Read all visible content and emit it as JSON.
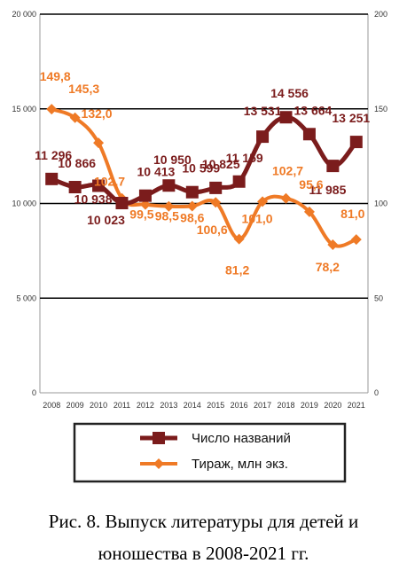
{
  "chart_data": {
    "type": "line",
    "title": "",
    "xlabel": "",
    "ylabel": "",
    "x": [
      "2008",
      "2009",
      "2010",
      "2011",
      "2012",
      "2013",
      "2014",
      "2015",
      "2016",
      "2017",
      "2018",
      "2019",
      "2020",
      "2021"
    ],
    "y_left": {
      "min": 0,
      "max": 20000,
      "ticks": [
        "0",
        "5 000",
        "10 000",
        "15 000",
        "20 000"
      ]
    },
    "y_right": {
      "min": 0,
      "max": 200,
      "ticks": [
        "0",
        "50",
        "100",
        "150",
        "200"
      ]
    },
    "grid": "horizontal",
    "legend_position": "bottom",
    "series": [
      {
        "name": "Число названий",
        "axis": "left",
        "color": "#7b1c1c",
        "marker": "square",
        "values": [
          11296,
          10866,
          10938,
          10023,
          10413,
          10950,
          10599,
          10825,
          11159,
          13531,
          14556,
          13664,
          11985,
          13251
        ],
        "labels": [
          "11 296",
          "10 866",
          "10 938",
          "10 023",
          "10 413",
          "10 950",
          "10 599",
          "10 825",
          "11 159",
          "13 531",
          "14 556",
          "13 664",
          "11 985",
          "13 251"
        ]
      },
      {
        "name": "Тираж, млн экз.",
        "axis": "right",
        "color": "#ef7a26",
        "marker": "diamond",
        "values": [
          149.8,
          145.3,
          132.0,
          102.7,
          99.5,
          98.5,
          98.6,
          100.6,
          81.2,
          101.0,
          102.7,
          95.6,
          78.2,
          81.0
        ],
        "labels": [
          "149,8",
          "145,3",
          "132,0",
          "102,7",
          "99,5",
          "98,5",
          "98,6",
          "100,6",
          "81,2",
          "101,0",
          "102,7",
          "95,6",
          "78,2",
          "81,0"
        ]
      }
    ]
  },
  "caption": {
    "line1": "Рис. 8. Выпуск литературы для детей и",
    "line2": "юношества в 2008-2021 гг."
  }
}
